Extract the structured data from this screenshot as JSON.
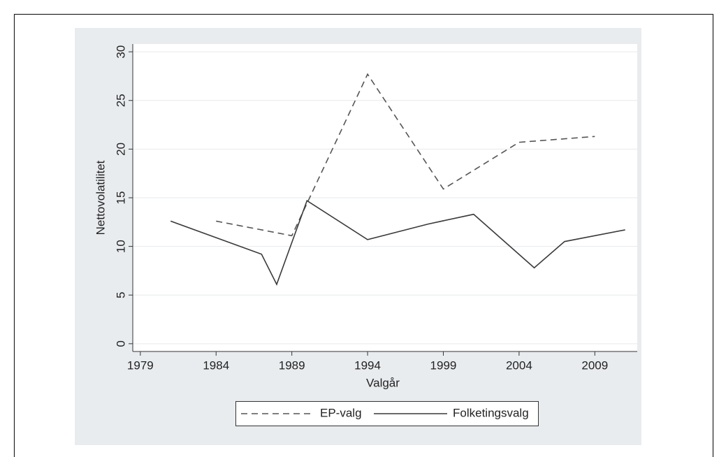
{
  "chart_data": {
    "type": "line",
    "x_label": "Valgår",
    "y_label": "Nettovolatilitet",
    "xlim": [
      1978.5,
      2011.8
    ],
    "xticks": [
      1979,
      1984,
      1989,
      1994,
      1999,
      2004,
      2009
    ],
    "ylim": [
      -0.8,
      30.8
    ],
    "yticks": [
      0,
      5,
      10,
      15,
      20,
      25,
      30
    ],
    "grid": true,
    "legend": "bottom",
    "series": [
      {
        "name": "EP-valg",
        "color": "#555555",
        "style": "dashed",
        "x": [
          1984,
          1989,
          1994,
          1999,
          2004,
          2009
        ],
        "values": [
          12.6,
          11.1,
          27.7,
          15.9,
          20.7,
          21.3
        ]
      },
      {
        "name": "Folketingsvalg",
        "color": "#3a3a3a",
        "style": "solid",
        "x": [
          1981,
          1987,
          1988,
          1990,
          1994,
          1998,
          2001,
          2005,
          2007,
          2011
        ],
        "values": [
          12.6,
          9.2,
          6.1,
          14.7,
          10.7,
          12.3,
          13.3,
          7.8,
          10.5,
          11.7
        ]
      }
    ]
  }
}
